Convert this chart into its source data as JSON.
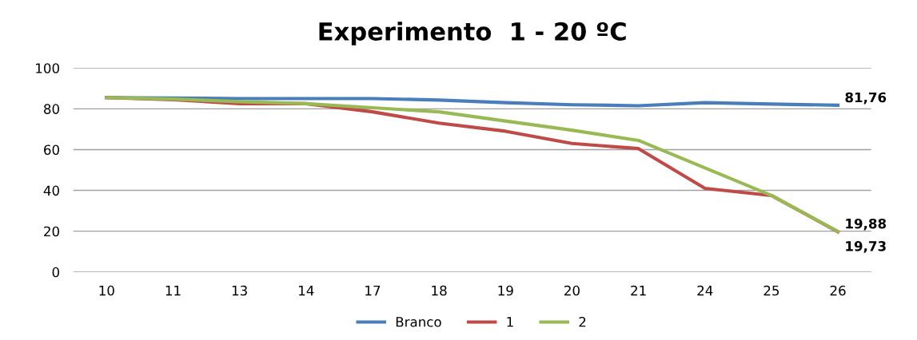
{
  "chart_data": {
    "type": "line",
    "title": "Experimento  1 - 20 ºC",
    "categories": [
      "10",
      "11",
      "13",
      "14",
      "17",
      "18",
      "19",
      "20",
      "21",
      "24",
      "25",
      "26"
    ],
    "series": [
      {
        "name": "Branco",
        "color": "#4a7ebb",
        "values": [
          85.5,
          85.3,
          85,
          85,
          85,
          84.3,
          83,
          82,
          81.5,
          83,
          82.3,
          81.76
        ],
        "value_labels": [
          null,
          null,
          null,
          null,
          null,
          null,
          null,
          null,
          null,
          null,
          null,
          "81,76"
        ]
      },
      {
        "name": "1",
        "color": "#be4b48",
        "values": [
          85.5,
          84.5,
          82.5,
          82.5,
          78.5,
          73,
          69,
          63,
          60.5,
          41,
          37.5,
          19.73
        ],
        "value_labels": [
          null,
          null,
          null,
          null,
          null,
          null,
          null,
          null,
          null,
          null,
          null,
          "19,73"
        ]
      },
      {
        "name": "2",
        "color": "#98b954",
        "values": [
          85.5,
          84.8,
          83.5,
          82.5,
          80.5,
          78.5,
          74,
          69.5,
          64.5,
          51,
          37.5,
          19.88
        ],
        "value_labels": [
          null,
          null,
          null,
          null,
          null,
          null,
          null,
          null,
          null,
          null,
          null,
          "19,88"
        ]
      }
    ],
    "ylim": [
      0,
      100
    ],
    "yticks": [
      0,
      20,
      40,
      60,
      80,
      100
    ],
    "grid": "y",
    "legend": "bottom",
    "marker": "none",
    "line_style": "solid"
  }
}
